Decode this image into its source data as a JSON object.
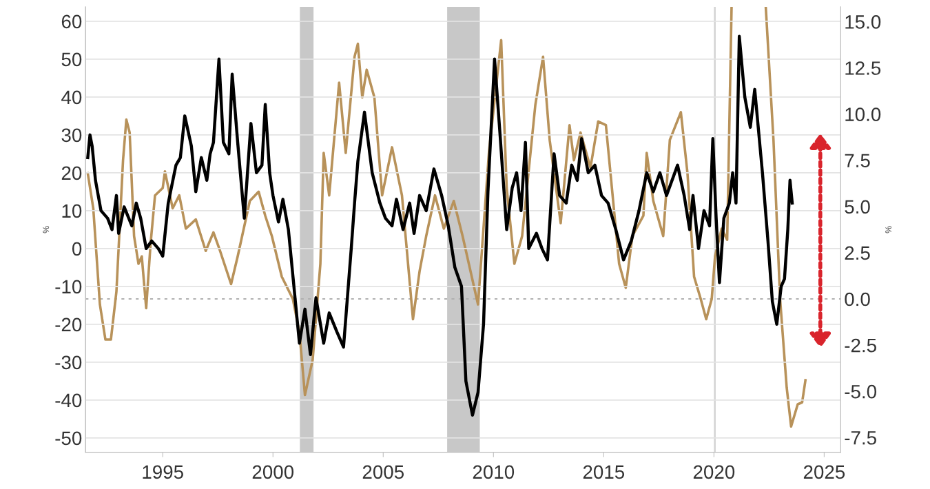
{
  "chart_data": {
    "type": "line",
    "ylabel": "%",
    "y2label": "%",
    "xlim": [
      1991.5,
      2025.75
    ],
    "xticks": [
      1995,
      2000,
      2005,
      2010,
      2015,
      2020,
      2025
    ],
    "ylim": [
      -53.8,
      63.8
    ],
    "yticks": [
      -50,
      -40,
      -30,
      -20,
      -10,
      0,
      10,
      20,
      30,
      40,
      50,
      60
    ],
    "y2lim": [
      -8.3,
      15.8
    ],
    "y2ticks": [
      {
        "value": -7.5,
        "label": "-7.5"
      },
      {
        "value": -5,
        "label": "-5.0"
      },
      {
        "value": -2.5,
        "label": "-2.5"
      },
      {
        "value": 0,
        "label": "0.0"
      },
      {
        "value": 2.5,
        "label": "2.5"
      },
      {
        "value": 5,
        "label": "5.0"
      },
      {
        "value": 7.5,
        "label": "7.5"
      },
      {
        "value": 10,
        "label": "10.0"
      },
      {
        "value": 12.5,
        "label": "12.5"
      },
      {
        "value": 15,
        "label": "15.0"
      }
    ],
    "grid": "y",
    "legend": false,
    "bands": [
      {
        "axis": "x",
        "from": 2001.22,
        "to": 2001.84,
        "color": "#c8c8c8"
      },
      {
        "axis": "x",
        "from": 2007.9,
        "to": 2009.38,
        "color": "#c8c8c8"
      },
      {
        "axis": "x",
        "from": 2020.0,
        "to": 2020.08,
        "color": "#d4d4d4"
      }
    ],
    "ref_lines": [
      {
        "axis": "y2",
        "value": 0,
        "color": "#b0b0b0",
        "line_style": "dotted"
      }
    ],
    "series": [
      {
        "color": "#b8925a",
        "axis": "y2",
        "x": [
          1991.6,
          1991.85,
          1992.15,
          1992.4,
          1992.65,
          1992.9,
          1993.2,
          1993.35,
          1993.5,
          1993.7,
          1993.9,
          1994.05,
          1994.25,
          1994.45,
          1994.65,
          1995.0,
          1995.1,
          1995.45,
          1995.75,
          1996.05,
          1996.5,
          1996.95,
          1997.3,
          1997.6,
          1998.1,
          1998.4,
          1998.95,
          1999.35,
          1999.65,
          1999.95,
          2000.4,
          2000.9,
          2001.2,
          2001.45,
          2001.8,
          2002.15,
          2002.3,
          2002.55,
          2003.0,
          2003.3,
          2003.7,
          2003.85,
          2004.05,
          2004.25,
          2004.6,
          2004.95,
          2005.4,
          2005.85,
          2006.35,
          2006.65,
          2006.95,
          2007.35,
          2007.75,
          2008.2,
          2008.6,
          2009.3,
          2009.8,
          2010.35,
          2010.6,
          2010.95,
          2011.3,
          2011.9,
          2012.25,
          2012.55,
          2013.05,
          2013.45,
          2013.65,
          2013.95,
          2014.4,
          2014.75,
          2015.1,
          2015.7,
          2016.0,
          2016.3,
          2016.8,
          2016.95,
          2017.25,
          2017.7,
          2018.0,
          2018.5,
          2018.8,
          2019.1,
          2019.4,
          2019.65,
          2019.9,
          2020.05,
          2020.35,
          2020.6,
          2020.8,
          2021.5,
          2022.35,
          2022.7,
          2023.0,
          2023.3,
          2023.5,
          2023.8,
          2024.0,
          2024.15
        ],
        "values": [
          6.8,
          4.9,
          -0.3,
          -2.2,
          -2.2,
          0.4,
          7.5,
          9.7,
          9.0,
          3.4,
          1.9,
          2.3,
          -0.5,
          3.0,
          5.6,
          6.0,
          6.9,
          4.9,
          5.6,
          3.8,
          4.3,
          2.6,
          3.6,
          2.6,
          0.8,
          2.3,
          5.3,
          5.8,
          4.5,
          3.4,
          1.2,
          0.0,
          -1.8,
          -5.2,
          -3.3,
          1.9,
          7.9,
          5.6,
          11.7,
          7.9,
          13.1,
          13.8,
          10.9,
          12.4,
          10.9,
          5.6,
          8.2,
          5.6,
          -1.1,
          1.5,
          3.4,
          5.6,
          3.8,
          5.3,
          3.4,
          -0.3,
          8.0,
          14.0,
          6.0,
          1.9,
          3.4,
          10.5,
          13.1,
          8.6,
          4.1,
          9.4,
          7.5,
          9.0,
          7.1,
          9.6,
          9.4,
          1.9,
          0.6,
          3.4,
          4.5,
          7.9,
          5.3,
          3.4,
          8.6,
          10.1,
          6.8,
          1.2,
          0.0,
          -1.1,
          0.0,
          2.3,
          3.8,
          3.2,
          15.8,
          null,
          15.8,
          8.6,
          0.0,
          -4.8,
          -6.9,
          -5.7,
          -5.6,
          -4.4
        ]
      },
      {
        "color": "#000000",
        "x": [
          1991.6,
          1991.7,
          1991.8,
          1991.95,
          1992.2,
          1992.5,
          1992.7,
          1992.9,
          1993.0,
          1993.25,
          1993.6,
          1993.8,
          1994.0,
          1994.25,
          1994.5,
          1994.8,
          1995.0,
          1995.25,
          1995.6,
          1995.8,
          1996.0,
          1996.3,
          1996.5,
          1996.75,
          1997.0,
          1997.15,
          1997.3,
          1997.55,
          1997.75,
          1998.0,
          1998.15,
          1998.4,
          1998.7,
          1999.0,
          1999.25,
          1999.5,
          1999.65,
          1999.85,
          2000.0,
          2000.25,
          2000.45,
          2000.7,
          2000.95,
          2001.2,
          2001.45,
          2001.7,
          2001.95,
          2002.3,
          2002.55,
          2002.9,
          2003.2,
          2003.55,
          2003.7,
          2003.85,
          2004.15,
          2004.5,
          2004.85,
          2005.1,
          2005.4,
          2005.6,
          2005.9,
          2006.2,
          2006.4,
          2006.65,
          2006.95,
          2007.3,
          2007.65,
          2007.95,
          2008.25,
          2008.55,
          2008.75,
          2009.05,
          2009.3,
          2009.55,
          2009.75,
          2010.05,
          2010.3,
          2010.6,
          2010.85,
          2011.05,
          2011.25,
          2011.45,
          2011.6,
          2011.95,
          2012.2,
          2012.45,
          2012.75,
          2013.0,
          2013.3,
          2013.55,
          2013.8,
          2014.0,
          2014.3,
          2014.6,
          2014.9,
          2015.2,
          2015.55,
          2015.9,
          2016.25,
          2016.6,
          2016.95,
          2017.25,
          2017.55,
          2017.85,
          2018.35,
          2018.65,
          2018.9,
          2019.05,
          2019.3,
          2019.55,
          2019.8,
          2019.95,
          2020.1,
          2020.25,
          2020.45,
          2020.7,
          2020.85,
          2021.0,
          2021.15,
          2021.4,
          2021.65,
          2021.85,
          2022.2,
          2022.45,
          2022.65,
          2022.85,
          2023.05,
          2023.2,
          2023.35,
          2023.45,
          2023.55
        ],
        "values": [
          24,
          30,
          27,
          18,
          10,
          8,
          5,
          14,
          4,
          11,
          6,
          12,
          8,
          0,
          2,
          0,
          -2,
          12,
          22,
          24,
          35,
          27,
          15,
          24,
          18,
          25,
          28,
          50,
          28,
          25,
          46,
          28,
          8,
          33,
          20,
          22,
          38,
          20,
          14,
          7,
          13,
          5,
          -10,
          -25,
          -16,
          -28,
          -13,
          -25,
          -17,
          -22,
          -26,
          0,
          12,
          23,
          36,
          20,
          12,
          8,
          6,
          13,
          5,
          12,
          4,
          14,
          10,
          21,
          14,
          6,
          -5,
          -10,
          -35,
          -44,
          -38,
          -20,
          15,
          50,
          30,
          5,
          16,
          20,
          10,
          28,
          0,
          4,
          0,
          -3,
          25,
          14,
          12,
          22,
          18,
          29,
          20,
          22,
          14,
          12,
          5,
          -3,
          2,
          10,
          20,
          15,
          20,
          14,
          22,
          14,
          5,
          14,
          0,
          10,
          6,
          29,
          8,
          -9,
          8,
          12,
          20,
          12,
          56,
          40,
          32,
          42,
          20,
          2,
          -14,
          -20,
          -10,
          -8,
          5,
          18,
          12
        ]
      }
    ]
  }
}
